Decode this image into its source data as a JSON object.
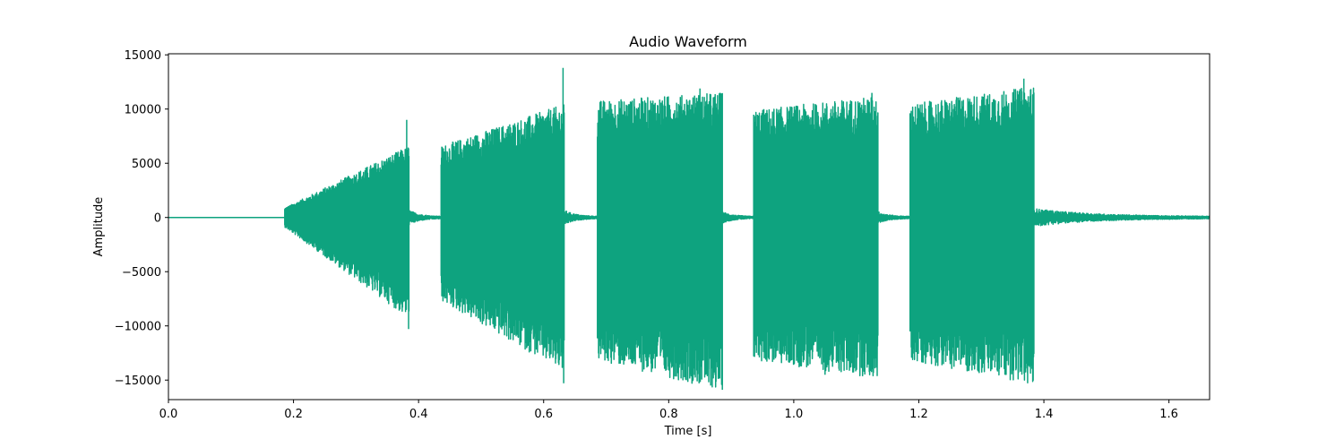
{
  "chart_data": {
    "type": "line",
    "title": "Audio Waveform",
    "xlabel": "Time [s]",
    "ylabel": "Amplitude",
    "xlim": [
      0.0,
      1.665
    ],
    "ylim": [
      -16800,
      15100
    ],
    "xticks": [
      "0.0",
      "0.2",
      "0.4",
      "0.6",
      "0.8",
      "1.0",
      "1.2",
      "1.4",
      "1.6"
    ],
    "xtick_values": [
      0.0,
      0.2,
      0.4,
      0.6,
      0.8,
      1.0,
      1.2,
      1.4,
      1.6
    ],
    "yticks": [
      "−15000",
      "−10000",
      "−5000",
      "0",
      "5000",
      "10000",
      "15000"
    ],
    "ytick_values": [
      -15000,
      -10000,
      -5000,
      0,
      5000,
      10000,
      15000
    ],
    "grid": false,
    "color": "#0ea37f",
    "series": [
      {
        "segments": [
          {
            "start": 0.0,
            "end": 0.186,
            "kind": "silence"
          },
          {
            "start": 0.186,
            "end": 0.385,
            "kind": "tone",
            "pos_start": 800,
            "pos_end": 6000,
            "neg_start": -800,
            "neg_end": -8500,
            "spikes": [
              [
                0.381,
                9000
              ],
              [
                0.384,
                -10300
              ]
            ]
          },
          {
            "start": 0.385,
            "end": 0.436,
            "kind": "decay",
            "level": 400
          },
          {
            "start": 0.436,
            "end": 0.633,
            "kind": "tone",
            "pos_start": 6000,
            "pos_end": 9500,
            "neg_start": -7000,
            "neg_end": -13000,
            "spikes": [
              [
                0.631,
                13800
              ],
              [
                0.632,
                -15300
              ]
            ]
          },
          {
            "start": 0.633,
            "end": 0.686,
            "kind": "decay",
            "level": 400
          },
          {
            "start": 0.686,
            "end": 0.886,
            "kind": "tone",
            "pos_start": 9800,
            "pos_end": 10500,
            "neg_start": -12000,
            "neg_end": -14500,
            "spikes": [
              [
                0.85,
                11900
              ],
              [
                0.864,
                -15200
              ]
            ]
          },
          {
            "start": 0.886,
            "end": 0.936,
            "kind": "decay",
            "level": 300
          },
          {
            "start": 0.936,
            "end": 1.135,
            "kind": "tone",
            "pos_start": 9000,
            "pos_end": 10200,
            "neg_start": -12000,
            "neg_end": -13500,
            "spikes": [
              [
                1.125,
                11500
              ],
              [
                1.05,
                -14500
              ]
            ]
          },
          {
            "start": 1.135,
            "end": 1.186,
            "kind": "decay",
            "level": 300
          },
          {
            "start": 1.186,
            "end": 1.384,
            "kind": "tone",
            "pos_start": 9500,
            "pos_end": 11000,
            "neg_start": -12000,
            "neg_end": -14000,
            "spikes": [
              [
                1.368,
                12800
              ],
              [
                1.374,
                -15300
              ]
            ]
          },
          {
            "start": 1.384,
            "end": 1.665,
            "kind": "decay",
            "level": 500
          }
        ]
      }
    ]
  }
}
